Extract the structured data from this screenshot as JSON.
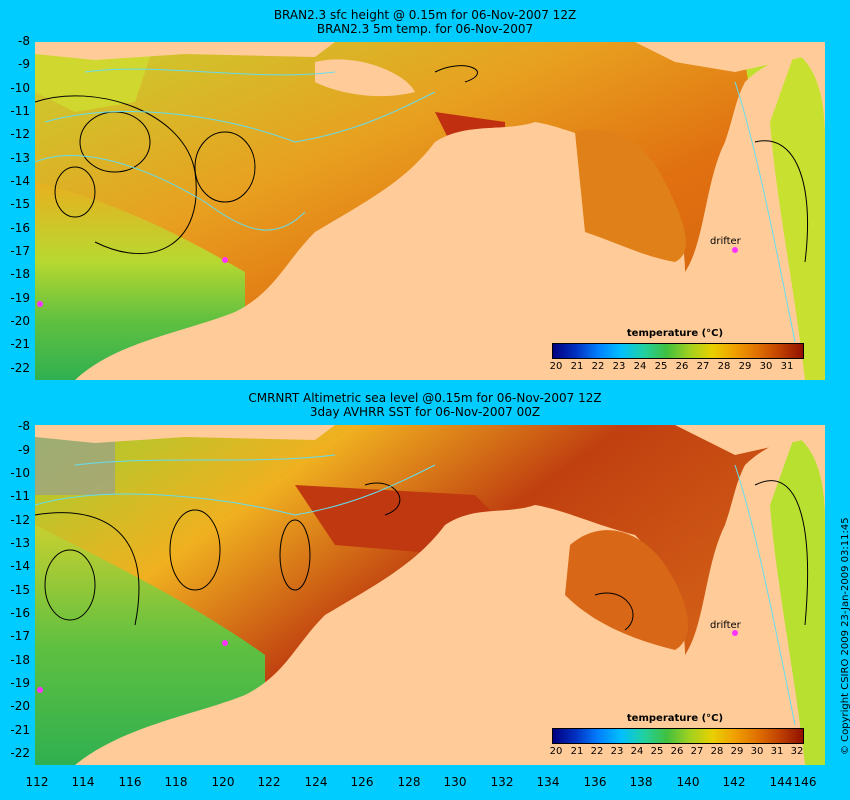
{
  "top": {
    "title_line1": "BRAN2.3 sfc height @ 0.15m for 06-Nov-2007 12Z",
    "title_line2": "BRAN2.3 5m temp. for 06-Nov-2007",
    "colorbar_title": "temperature (°C)",
    "colorbar_labels": [
      "20",
      "21",
      "22",
      "23",
      "24",
      "25",
      "26",
      "27",
      "28",
      "29",
      "30",
      "31"
    ],
    "drifter_label": "drifter"
  },
  "bottom": {
    "title_line1": "CMRNRT Altimetric sea level  @0.15m  for 06-Nov-2007 12Z",
    "title_line2": "3day AVHRR SST for 06-Nov-2007 00Z",
    "colorbar_title": "temperature (°C)",
    "colorbar_labels": [
      "20",
      "21",
      "22",
      "23",
      "24",
      "25",
      "26",
      "27",
      "28",
      "29",
      "30",
      "31",
      "32"
    ],
    "drifter_label": "drifter"
  },
  "lat_labels": [
    "-8",
    "-9",
    "-10",
    "-11",
    "-12",
    "-13",
    "-14",
    "-15",
    "-16",
    "-17",
    "-18",
    "-19",
    "-20",
    "-21",
    "-22"
  ],
  "lon_labels": [
    "112",
    "114",
    "116",
    "118",
    "120",
    "122",
    "124",
    "126",
    "128",
    "130",
    "132",
    "134",
    "136",
    "138",
    "140",
    "142",
    "144",
    "146"
  ],
  "copyright": "© Copyright CSIRO 2009   23-Jan-2009 03:11:45",
  "colors": {
    "background": "#00ccff",
    "land": "#ffcc99",
    "contour": "#66ddee",
    "drifter": "#ff33ff"
  }
}
